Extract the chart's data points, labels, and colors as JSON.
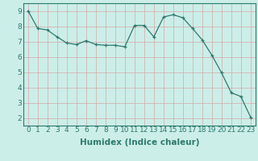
{
  "x": [
    0,
    1,
    2,
    3,
    4,
    5,
    6,
    7,
    8,
    9,
    10,
    11,
    12,
    13,
    14,
    15,
    16,
    17,
    18,
    19,
    20,
    21,
    22,
    23
  ],
  "y": [
    9.0,
    7.85,
    7.75,
    7.3,
    6.9,
    6.8,
    7.05,
    6.8,
    6.75,
    6.75,
    6.65,
    8.05,
    8.05,
    7.3,
    8.6,
    8.75,
    8.55,
    7.85,
    7.1,
    6.1,
    4.95,
    3.65,
    3.4,
    2.05
  ],
  "xlabel": "Humidex (Indice chaleur)",
  "xlim": [
    -0.5,
    23.5
  ],
  "ylim": [
    1.5,
    9.5
  ],
  "yticks": [
    2,
    3,
    4,
    5,
    6,
    7,
    8,
    9
  ],
  "xticks": [
    0,
    1,
    2,
    3,
    4,
    5,
    6,
    7,
    8,
    9,
    10,
    11,
    12,
    13,
    14,
    15,
    16,
    17,
    18,
    19,
    20,
    21,
    22,
    23
  ],
  "line_color": "#2d7a6e",
  "marker": "+",
  "bg_color": "#cceee8",
  "grid_color": "#d4a8a8",
  "tick_label_fontsize": 6.5,
  "xlabel_fontsize": 7.5
}
